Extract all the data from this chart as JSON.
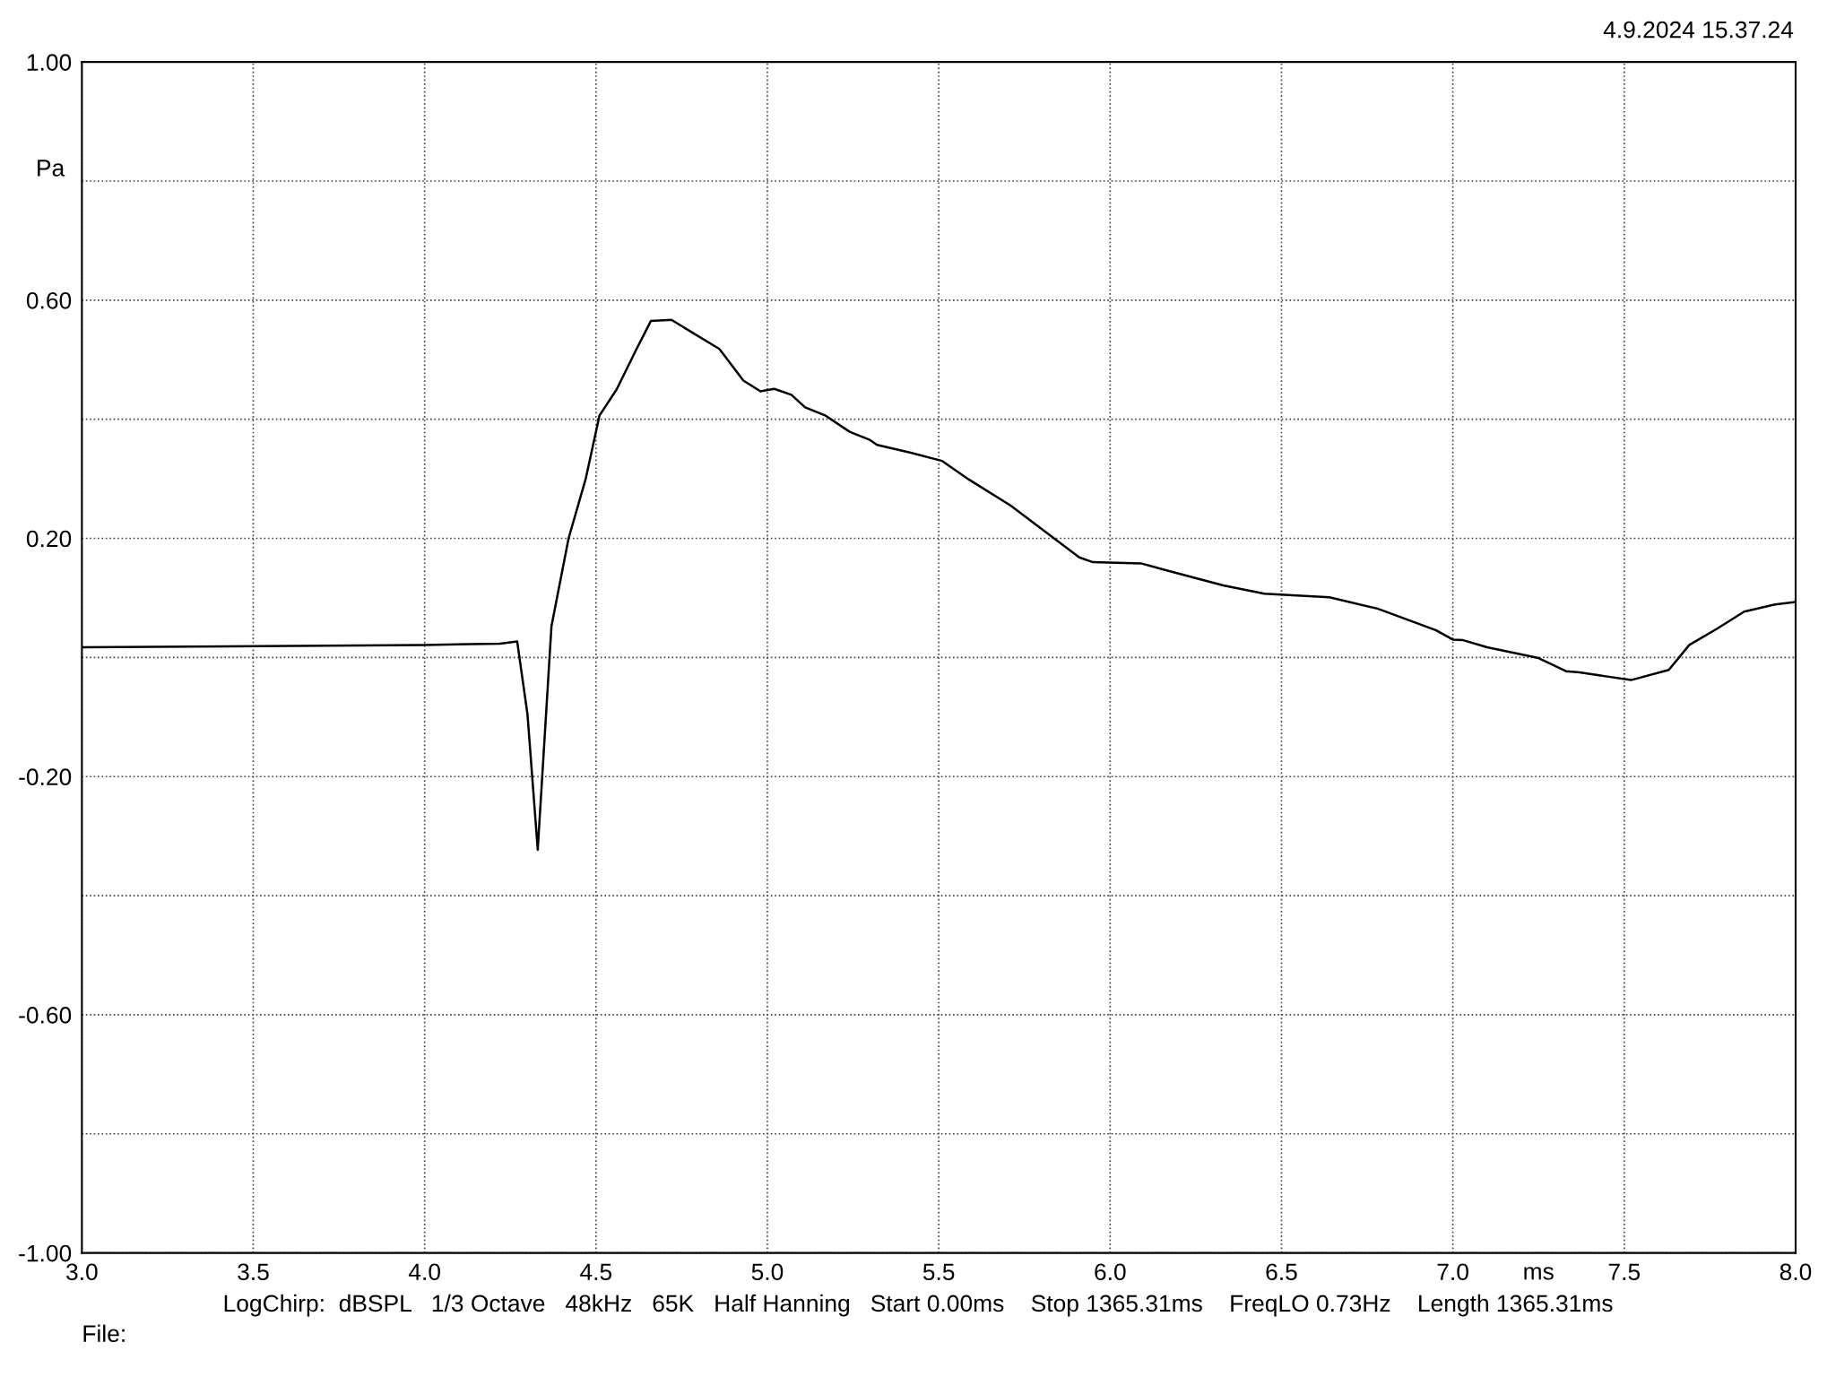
{
  "chart_data": {
    "type": "line",
    "ylabel": "Pa",
    "xlabel": "ms",
    "annotations": [
      "4.9.2024 15.37.24",
      "LogChirp:  dBSPL   1/3 Octave   48kHz   65K   Half Hanning   Start 0.00ms    Stop 1365.31ms    FreqLO 0.73Hz    Length 1365.31ms",
      "File:"
    ],
    "series": [
      {
        "color": "#000000",
        "x": [
          3.0,
          4.0,
          4.22,
          4.27,
          4.3,
          4.33,
          4.37,
          4.42,
          4.47,
          4.51,
          4.56,
          4.62,
          4.66,
          4.72,
          4.86,
          4.93,
          4.98,
          5.02,
          5.07,
          5.11,
          5.17,
          5.24,
          5.3,
          5.32,
          5.41,
          5.51,
          5.59,
          5.71,
          5.91,
          5.95,
          6.09,
          6.16,
          6.33,
          6.45,
          6.64,
          6.78,
          6.95,
          7.0,
          7.03,
          7.1,
          7.25,
          7.33,
          7.37,
          7.45,
          7.52,
          7.63,
          7.69,
          7.77,
          7.85,
          7.94,
          8.0
        ],
        "values": [
          0.017,
          0.021,
          0.023,
          0.027,
          -0.095,
          -0.323,
          0.052,
          0.2,
          0.3,
          0.406,
          0.45,
          0.52,
          0.565,
          0.567,
          0.518,
          0.465,
          0.447,
          0.451,
          0.441,
          0.42,
          0.406,
          0.379,
          0.365,
          0.357,
          0.345,
          0.33,
          0.298,
          0.255,
          0.168,
          0.16,
          0.158,
          0.147,
          0.121,
          0.107,
          0.101,
          0.082,
          0.046,
          0.03,
          0.029,
          0.017,
          -0.001,
          -0.023,
          -0.025,
          -0.032,
          -0.038,
          -0.021,
          0.021,
          0.048,
          0.077,
          0.089,
          0.093
        ]
      }
    ],
    "xlim": [
      3.0,
      8.0
    ],
    "xticks": [
      {
        "value": 3.0,
        "label": "3.0"
      },
      {
        "value": 3.5,
        "label": "3.5"
      },
      {
        "value": 4.0,
        "label": "4.0"
      },
      {
        "value": 4.5,
        "label": "4.5"
      },
      {
        "value": 5.0,
        "label": "5.0"
      },
      {
        "value": 5.5,
        "label": "5.5"
      },
      {
        "value": 6.0,
        "label": "6.0"
      },
      {
        "value": 6.5,
        "label": "6.5"
      },
      {
        "value": 7.0,
        "label": "7.0"
      },
      {
        "value": 7.5,
        "label": "7.5"
      },
      {
        "value": 8.0,
        "label": "8.0"
      }
    ],
    "ylim": [
      -1.0,
      1.0
    ],
    "yticks": [
      {
        "value": -1.0,
        "label": "-1.00"
      },
      {
        "value": -0.8,
        "label": null
      },
      {
        "value": -0.6,
        "label": "-0.60"
      },
      {
        "value": -0.4,
        "label": null
      },
      {
        "value": -0.2,
        "label": "-0.20"
      },
      {
        "value": 0,
        "label": null
      },
      {
        "value": 0.2,
        "label": "0.20"
      },
      {
        "value": 0.4,
        "label": null
      },
      {
        "value": 0.6,
        "label": "0.60"
      },
      {
        "value": 0.8,
        "label": null
      },
      {
        "value": 1.0,
        "label": "1.00"
      }
    ],
    "grid": true,
    "line_style": "solid",
    "marker": "none",
    "legend": false
  }
}
